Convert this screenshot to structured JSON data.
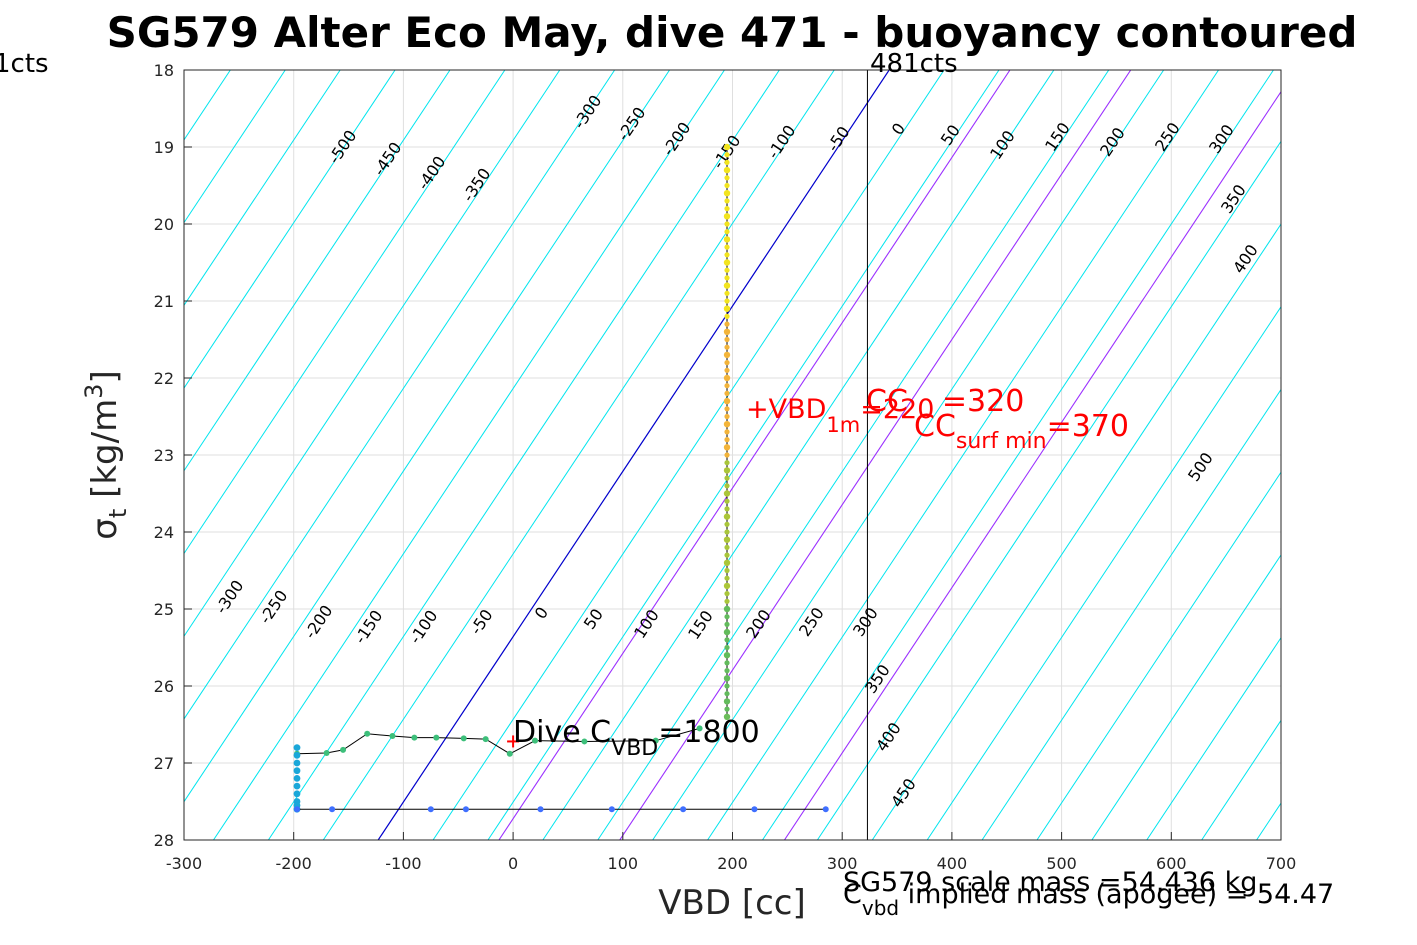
{
  "chart_data": {
    "type": "scatter",
    "title": "SG579 Alter Eco May, dive 471 - buoyancy contoured",
    "xlabel": "VBD [cc]",
    "ylabel": "σ_t [kg/m^3]",
    "ylabel_parts": {
      "sym": "σ",
      "sub": "t",
      "unit_open": " [kg/m",
      "sup": "3",
      "unit_close": "]"
    },
    "xlim": [
      -300,
      700
    ],
    "ylim": [
      18,
      28
    ],
    "y_reversed": true,
    "grid": true,
    "xticks": [
      "-300",
      "-200",
      "-100",
      "0",
      "100",
      "200",
      "300",
      "400",
      "500",
      "600",
      "700"
    ],
    "yticks": [
      "18",
      "19",
      "20",
      "21",
      "22",
      "23",
      "24",
      "25",
      "26",
      "27",
      "28"
    ],
    "contour_levels_cyan": [
      -500,
      -450,
      -400,
      -350,
      -300,
      -250,
      -200,
      -150,
      -100,
      -50,
      50,
      100,
      150,
      200,
      250,
      300,
      350,
      400,
      450,
      500
    ],
    "contour_levels_labeled_upper": [
      "-500",
      "-450",
      "-400",
      "-350",
      "-300",
      "-250",
      "-200",
      "-150",
      "-100",
      "-50",
      "0",
      "50",
      "100",
      "150",
      "200",
      "250",
      "300",
      "350",
      "400",
      "500"
    ],
    "contour_levels_labeled_lower": [
      "-300",
      "-250",
      "-200",
      "-150",
      "-100",
      "-50",
      "0",
      "50",
      "100",
      "150",
      "200",
      "250",
      "300",
      "350",
      "400",
      "450"
    ],
    "neutral_line_color": "#0000cc",
    "magenta_lines_color": "#9b30ff",
    "cyan_color": "#00e5ee",
    "vertical_marker": {
      "label": "481cts",
      "vbd": 323
    },
    "left_marker_label": "1cts",
    "descent_series": {
      "vbd": 195,
      "sigma": [
        19.0,
        19.3,
        19.6,
        19.9,
        20.2,
        20.5,
        20.8,
        21.1,
        21.4,
        21.7,
        22.0,
        22.3,
        22.6,
        22.9,
        23.2,
        23.5,
        23.8,
        24.1,
        24.4,
        24.7,
        25.0,
        25.3,
        25.6,
        25.9,
        26.2,
        26.4
      ]
    },
    "transition_series": {
      "vbd": [
        -197,
        -170,
        -155,
        -133,
        -110,
        -90,
        -70,
        -45,
        -25,
        -3,
        20,
        65,
        130,
        170
      ],
      "sigma": [
        26.88,
        26.87,
        26.83,
        26.62,
        26.65,
        26.67,
        26.67,
        26.68,
        26.69,
        26.88,
        26.71,
        26.72,
        26.71,
        26.55
      ]
    },
    "bottom_column": {
      "vbd": -197,
      "sigma": [
        26.8,
        26.9,
        27.0,
        27.1,
        27.2,
        27.3,
        27.4,
        27.5,
        27.55,
        27.6
      ]
    },
    "bottom_series": {
      "vbd": [
        -197,
        -165,
        -75,
        -43,
        25,
        90,
        155,
        220,
        285
      ],
      "sigma": [
        27.6,
        27.6,
        27.6,
        27.6,
        27.6,
        27.6,
        27.6,
        27.6,
        27.6
      ]
    },
    "annotations": {
      "vbd_1m": {
        "text": "+VBD",
        "sub": "1m",
        "tail": "=220"
      },
      "cc_overlap": "CC",
      "cc_eq": "=320",
      "cc_surf": {
        "text": "CC",
        "sub": "surf min",
        "tail": "=370"
      },
      "dive_cvbd": {
        "text": "Dive C",
        "sub": "VBD",
        "tail": "=1800"
      },
      "scale_mass": "SG579 scale mass =54.436 kg",
      "implied_mass": {
        "text": "C",
        "sub": "vbd",
        "tail": " implied mass (apogee) = 54.47"
      }
    }
  }
}
